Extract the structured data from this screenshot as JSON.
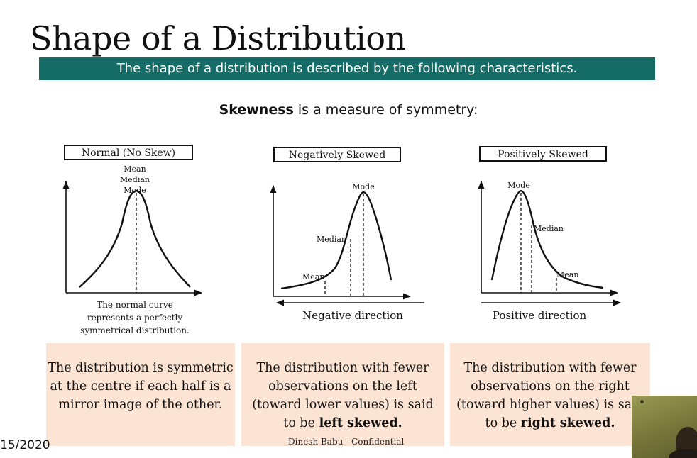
{
  "slide": {
    "title": "Shape of a Distribution",
    "banner": "The shape of a distribution is described by the following characteristics.",
    "intro": {
      "bold": "Skewness",
      "rest": " is a measure of symmetry:"
    },
    "date": "15/2020",
    "footer": "Dinesh Babu - Confidential"
  },
  "panels": [
    {
      "label": "Normal (No Skew)",
      "markers": [
        "Mean",
        "Median",
        "Mode"
      ],
      "caption_lines": [
        "The normal curve",
        "represents a perfectly",
        "symmetrical distribution."
      ],
      "box": {
        "pre": "The distribution is symmetric at the centre if each half is a mirror image of the other.",
        "bold": "",
        "post": ""
      }
    },
    {
      "label": "Negatively Skewed",
      "markers": [
        "Mean",
        "Median",
        "Mode"
      ],
      "direction": "Negative direction",
      "box": {
        "pre": "The distribution with fewer observations on the left (toward lower values) is said to be ",
        "bold": "left skewed.",
        "post": ""
      }
    },
    {
      "label": "Positively Skewed",
      "markers": [
        "Mode",
        "Median",
        "Mean"
      ],
      "direction": "Positive direction",
      "box": {
        "pre": "The distribution with fewer observations on the right (toward higher values) is said to be ",
        "bold": "right skewed.",
        "post": ""
      }
    }
  ],
  "colors": {
    "banner": "#156b66",
    "box": "#fbe4d4",
    "line": "#111111"
  }
}
